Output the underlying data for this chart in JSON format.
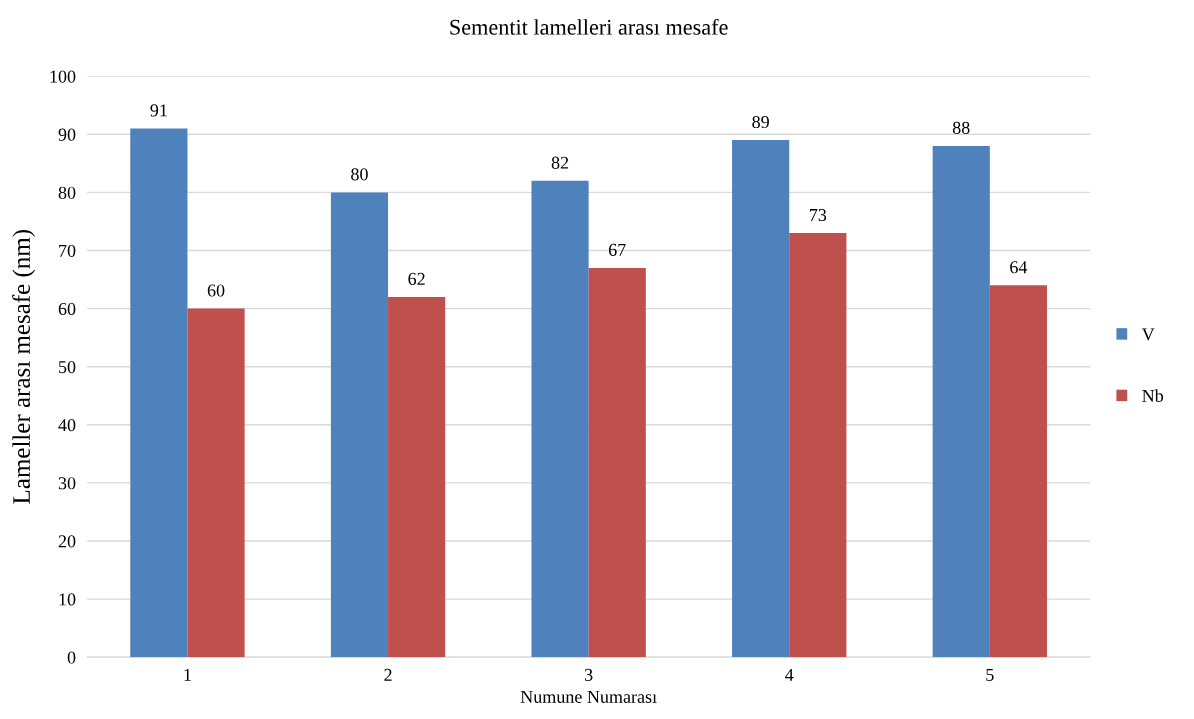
{
  "chart_data": {
    "type": "bar",
    "title": "Sementit lamelleri arası mesafe",
    "xlabel": "Numune Numarası",
    "ylabel": "Lameller arası mesafe (nm)",
    "categories": [
      "1",
      "2",
      "3",
      "4",
      "5"
    ],
    "series": [
      {
        "name": "V",
        "color": "#4f81bd",
        "values": [
          91,
          80,
          82,
          89,
          88
        ]
      },
      {
        "name": "Nb",
        "color": "#c0504d",
        "values": [
          60,
          62,
          67,
          73,
          64
        ]
      }
    ],
    "ylim": [
      0,
      100
    ],
    "yticks": [
      0,
      10,
      20,
      30,
      40,
      50,
      60,
      70,
      80,
      90,
      100
    ],
    "grid": "y",
    "legend": "right",
    "data_labels": true
  }
}
